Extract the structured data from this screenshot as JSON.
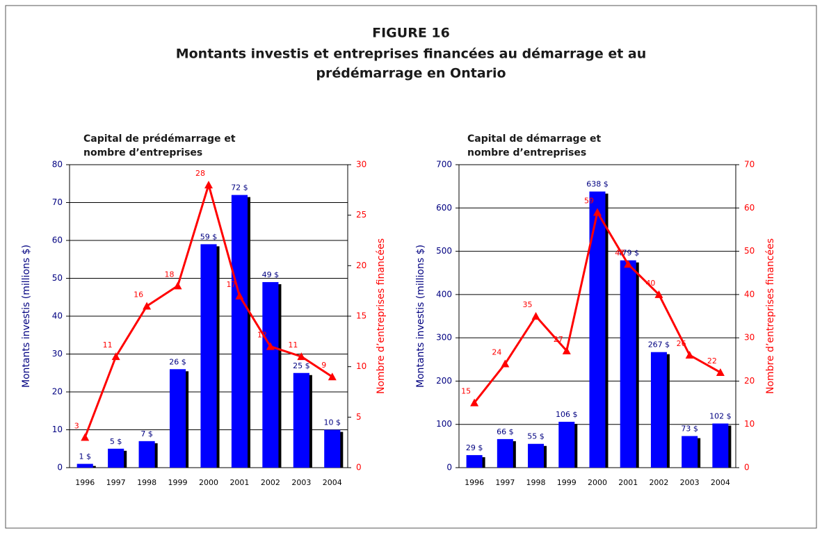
{
  "figure": {
    "title": [
      "FIGURE 16",
      "Montants investis et entreprises financées au démarrage et au",
      "prédémarrage en Ontario"
    ]
  },
  "chart_data": [
    {
      "type": "bar",
      "subtitle": [
        "Capital de prédémarrage et",
        "nombre d’entreprises"
      ],
      "categories": [
        "1996",
        "1997",
        "1998",
        "1999",
        "2000",
        "2001",
        "2002",
        "2003",
        "2004"
      ],
      "ylabel": "Montants investis (millions $)",
      "y2label": "Nombre d’entreprises financées",
      "ylim": [
        0,
        80
      ],
      "yticks": [
        0,
        10,
        20,
        30,
        40,
        50,
        60,
        70,
        80
      ],
      "y2lim": [
        0,
        30
      ],
      "y2ticks": [
        0,
        5,
        10,
        15,
        20,
        25,
        30
      ],
      "grid": true,
      "series": [
        {
          "name": "Montants investis",
          "type": "bar",
          "color": "#0000ff",
          "values": [
            1,
            5,
            7,
            26,
            59,
            72,
            49,
            25,
            10
          ],
          "value_labels": [
            "1 $",
            "5 $",
            "7 $",
            "26 $",
            "59 $",
            "72 $",
            "49 $",
            "25 $",
            "10 $"
          ]
        },
        {
          "name": "Nombre d’entreprises",
          "type": "line",
          "axis": "y2",
          "color": "#ff0000",
          "values": [
            3,
            11,
            16,
            18,
            28,
            17,
            12,
            11,
            9
          ]
        }
      ]
    },
    {
      "type": "bar",
      "subtitle": [
        "Capital de démarrage et",
        "nombre d’entreprises"
      ],
      "categories": [
        "1996",
        "1997",
        "1998",
        "1999",
        "2000",
        "2001",
        "2002",
        "2003",
        "2004"
      ],
      "ylabel": "Montants investis (millions $)",
      "y2label": "Nombre d’entreprises financées",
      "ylim": [
        0,
        700
      ],
      "yticks": [
        0,
        100,
        200,
        300,
        400,
        500,
        600,
        700
      ],
      "y2lim": [
        0,
        70
      ],
      "y2ticks": [
        0,
        10,
        20,
        30,
        40,
        50,
        60,
        70
      ],
      "grid": true,
      "series": [
        {
          "name": "Montants investis",
          "type": "bar",
          "color": "#0000ff",
          "values": [
            29,
            66,
            55,
            106,
            638,
            479,
            267,
            73,
            102
          ],
          "value_labels": [
            "29 $",
            "66 $",
            "55 $",
            "106 $",
            "638 $",
            "479 $",
            "267 $",
            "73 $",
            "102 $"
          ]
        },
        {
          "name": "Nombre d’entreprises",
          "type": "line",
          "axis": "y2",
          "color": "#ff0000",
          "values": [
            15,
            24,
            35,
            27,
            59,
            47,
            40,
            26,
            22
          ]
        }
      ]
    }
  ]
}
